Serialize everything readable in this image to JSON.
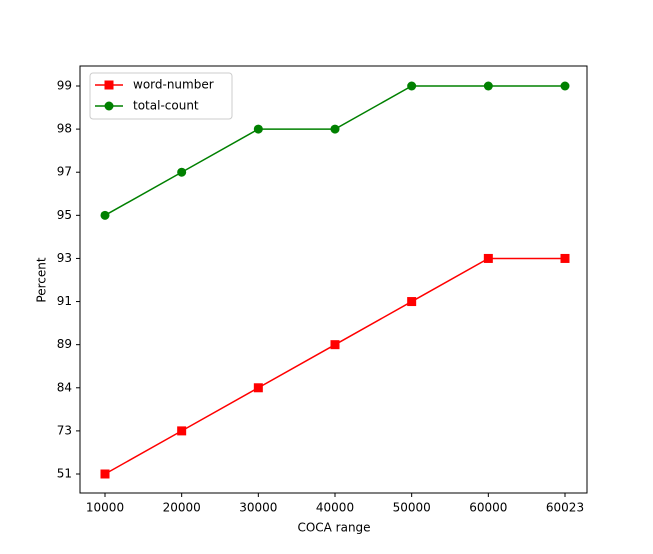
{
  "chart_data": {
    "type": "line",
    "x_label": "COCA range",
    "y_label": "Percent",
    "categories": [
      "10000",
      "20000",
      "30000",
      "40000",
      "50000",
      "60000",
      "60023"
    ],
    "yscale": "category",
    "yticks": [
      51,
      73,
      84,
      89,
      91,
      93,
      95,
      97,
      98,
      99
    ],
    "legend": "upper left",
    "series": [
      {
        "name": "word-number",
        "color": "#ff0000",
        "marker": "square",
        "values": [
          51,
          73,
          84,
          89,
          91,
          93,
          93
        ]
      },
      {
        "name": "total-count",
        "color": "#008000",
        "marker": "circle",
        "values": [
          95,
          97,
          98,
          98,
          99,
          99,
          99
        ]
      }
    ]
  }
}
